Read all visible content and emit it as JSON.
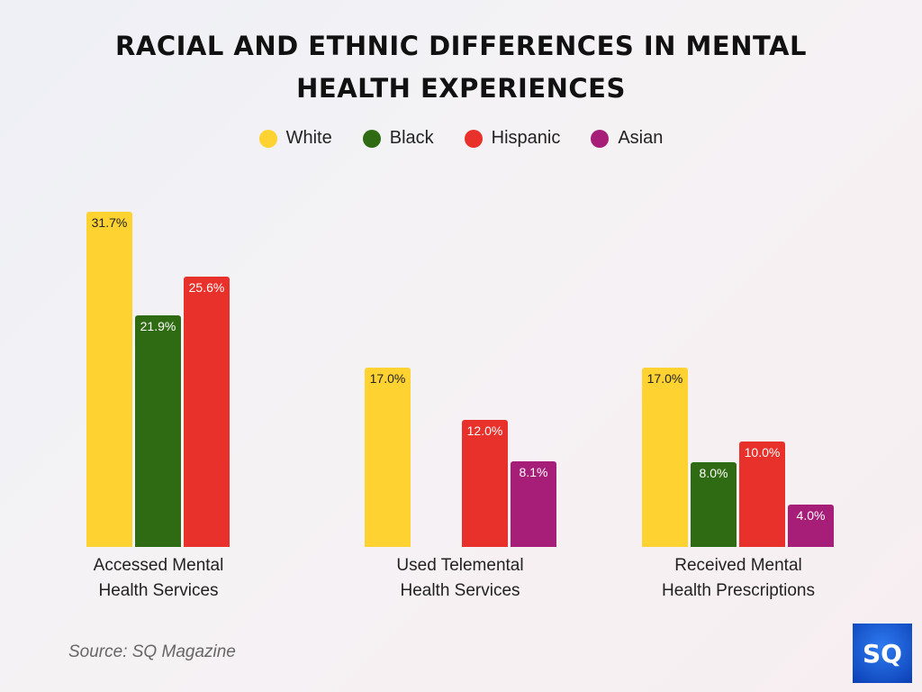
{
  "chart_data": {
    "type": "bar",
    "title_lines": [
      "RACIAL AND ETHNIC DIFFERENCES IN MENTAL",
      "HEALTH EXPERIENCES"
    ],
    "categories": [
      [
        "Accessed Mental",
        "Health Services"
      ],
      [
        "Used Telemental",
        "Health Services"
      ],
      [
        "Received Mental",
        "Health Prescriptions"
      ]
    ],
    "series": [
      {
        "name": "White",
        "color": "#FDD231",
        "label_color": "#222222",
        "values": [
          31.7,
          17.0,
          17.0
        ],
        "labels": [
          "31.7%",
          "17.0%",
          "17.0%"
        ]
      },
      {
        "name": "Black",
        "color": "#2F6B13",
        "label_color": "#ffffff",
        "values": [
          21.9,
          null,
          8.0
        ],
        "labels": [
          "21.9%",
          null,
          "8.0%"
        ]
      },
      {
        "name": "Hispanic",
        "color": "#E8312A",
        "label_color": "#ffffff",
        "values": [
          25.6,
          12.0,
          10.0
        ],
        "labels": [
          "25.6%",
          "12.0%",
          "10.0%"
        ]
      },
      {
        "name": "Asian",
        "color": "#A71E79",
        "label_color": "#ffffff",
        "values": [
          null,
          8.1,
          4.0
        ],
        "labels": [
          null,
          "8.1%",
          "4.0%"
        ]
      }
    ],
    "xlabel": "",
    "ylabel": "",
    "ylim": [
      0,
      32
    ],
    "grid": false,
    "legend_position": "top-center"
  },
  "source": "Source: SQ Magazine",
  "logo_text": "SQ"
}
